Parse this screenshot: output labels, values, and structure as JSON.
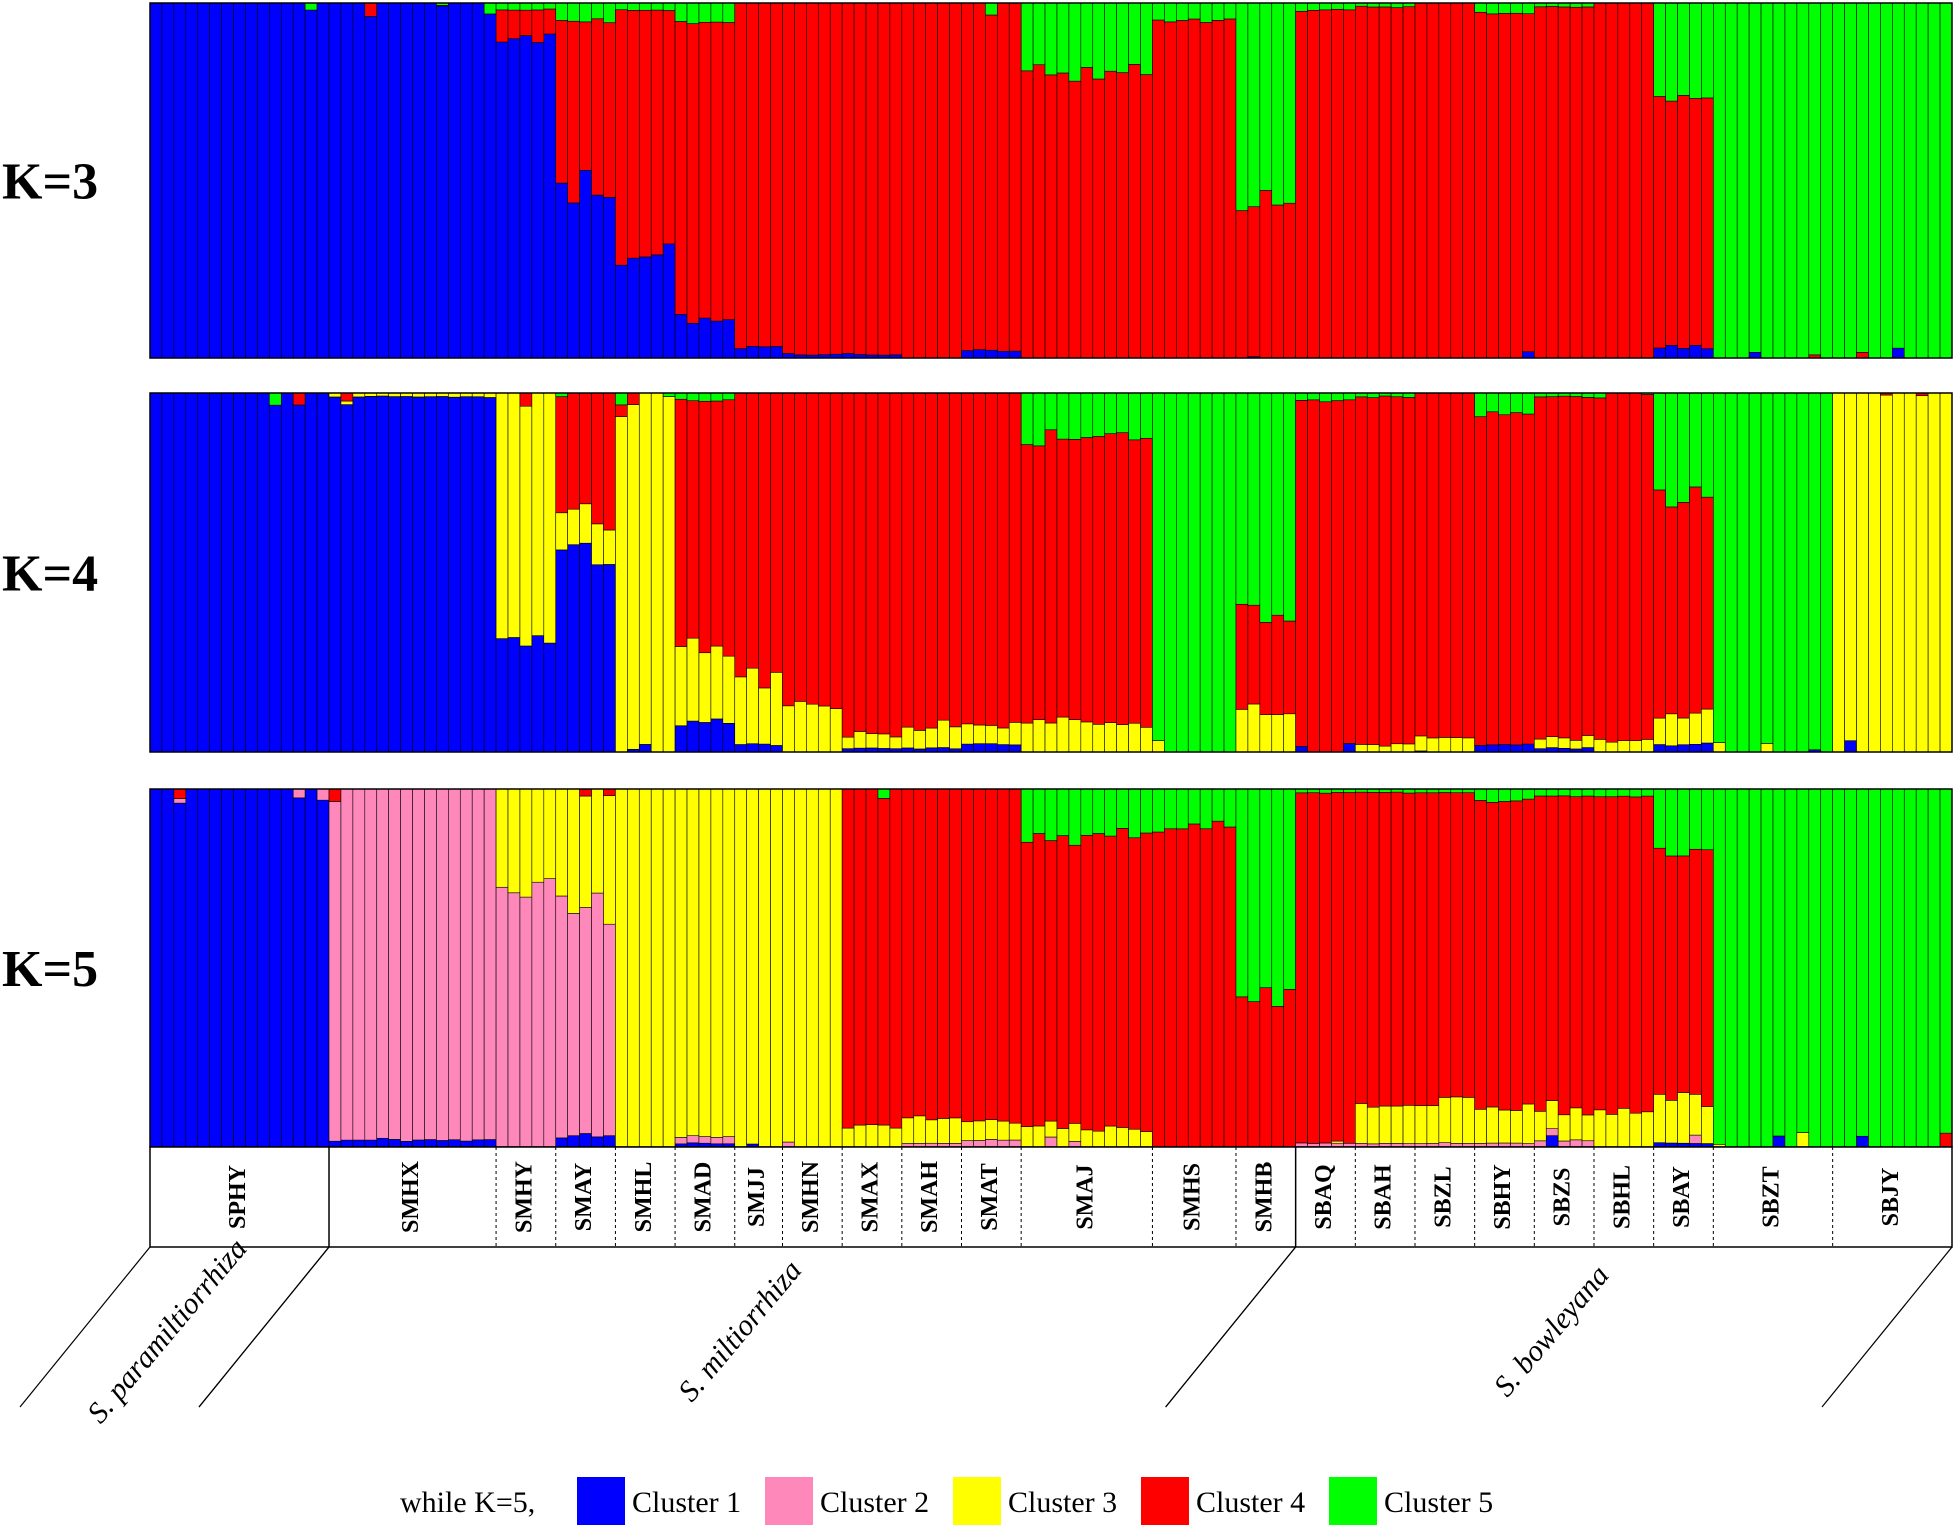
{
  "chart_data": {
    "type": "bar",
    "layout": "stacked-100%",
    "panels": [
      {
        "label": "K=3",
        "colors": [
          "#0000ff",
          "#ff0000",
          "#00ff00"
        ]
      },
      {
        "label": "K=4",
        "colors": [
          "#0000ff",
          "#ffff00",
          "#ff0000",
          "#00ff00"
        ]
      },
      {
        "label": "K=5",
        "colors": [
          "#0000ff",
          "#ff88bb",
          "#ffff00",
          "#ff0000",
          "#00ff00"
        ]
      }
    ],
    "populations": [
      {
        "name": "SPHY",
        "species": 0,
        "n": 15,
        "k3": [
          1.0,
          0.0,
          0.0
        ],
        "k4": [
          1.0,
          0.0,
          0.0,
          0.0
        ],
        "k5": [
          1.0,
          0.0,
          0.0,
          0.0,
          0.0
        ]
      },
      {
        "name": "SMHX",
        "species": 1,
        "n": 14,
        "k3": [
          1.0,
          0.0,
          0.0
        ],
        "k4": [
          0.99,
          0.01,
          0.0,
          0.0
        ],
        "k5": [
          0.02,
          0.98,
          0.0,
          0.0,
          0.0
        ]
      },
      {
        "name": "SMHY",
        "species": 1,
        "n": 5,
        "k3": [
          0.9,
          0.08,
          0.02
        ],
        "k4": [
          0.28,
          0.72,
          0.0,
          0.0
        ],
        "k5": [
          0.0,
          0.72,
          0.28,
          0.0,
          0.0
        ]
      },
      {
        "name": "SMAY",
        "species": 1,
        "n": 5,
        "k3": [
          0.48,
          0.47,
          0.05
        ],
        "k4": [
          0.55,
          0.1,
          0.35,
          0.0
        ],
        "k5": [
          0.03,
          0.65,
          0.32,
          0.0,
          0.0
        ]
      },
      {
        "name": "SMHL",
        "species": 1,
        "n": 5,
        "k3": [
          0.28,
          0.7,
          0.02
        ],
        "k4": [
          0.0,
          1.0,
          0.0,
          0.0
        ],
        "k5": [
          0.0,
          0.0,
          1.0,
          0.0,
          0.0
        ]
      },
      {
        "name": "SMAD",
        "species": 1,
        "n": 5,
        "k3": [
          0.12,
          0.82,
          0.06
        ],
        "k4": [
          0.08,
          0.2,
          0.7,
          0.02
        ],
        "k5": [
          0.01,
          0.02,
          0.97,
          0.0,
          0.0
        ]
      },
      {
        "name": "SMJJ",
        "species": 1,
        "n": 4,
        "k3": [
          0.03,
          0.97,
          0.0
        ],
        "k4": [
          0.02,
          0.18,
          0.8,
          0.0
        ],
        "k5": [
          0.0,
          0.0,
          1.0,
          0.0,
          0.0
        ]
      },
      {
        "name": "SMHN",
        "species": 1,
        "n": 5,
        "k3": [
          0.01,
          0.99,
          0.0
        ],
        "k4": [
          0.0,
          0.14,
          0.86,
          0.0
        ],
        "k5": [
          0.0,
          0.0,
          1.0,
          0.0,
          0.0
        ]
      },
      {
        "name": "SMAX",
        "species": 1,
        "n": 5,
        "k3": [
          0.01,
          0.99,
          0.0
        ],
        "k4": [
          0.01,
          0.04,
          0.95,
          0.0
        ],
        "k5": [
          0.0,
          0.0,
          0.06,
          0.94,
          0.0
        ]
      },
      {
        "name": "SMAH",
        "species": 1,
        "n": 5,
        "k3": [
          0.0,
          1.0,
          0.0
        ],
        "k4": [
          0.01,
          0.06,
          0.93,
          0.0
        ],
        "k5": [
          0.0,
          0.01,
          0.07,
          0.92,
          0.0
        ]
      },
      {
        "name": "SMAT",
        "species": 1,
        "n": 5,
        "k3": [
          0.02,
          0.98,
          0.0
        ],
        "k4": [
          0.02,
          0.05,
          0.93,
          0.0
        ],
        "k5": [
          0.0,
          0.02,
          0.05,
          0.93,
          0.0
        ]
      },
      {
        "name": "SMAJ",
        "species": 1,
        "n": 11,
        "k3": [
          0.0,
          0.8,
          0.2
        ],
        "k4": [
          0.0,
          0.08,
          0.8,
          0.12
        ],
        "k5": [
          0.0,
          0.0,
          0.05,
          0.82,
          0.13
        ]
      },
      {
        "name": "SMHS",
        "species": 1,
        "n": 7,
        "k3": [
          0.0,
          0.95,
          0.05
        ],
        "k4": [
          0.0,
          0.0,
          0.0,
          1.0
        ],
        "k5": [
          0.0,
          0.0,
          0.0,
          0.9,
          0.1
        ]
      },
      {
        "name": "SMHB",
        "species": 1,
        "n": 5,
        "k3": [
          0.0,
          0.45,
          0.55
        ],
        "k4": [
          0.0,
          0.12,
          0.28,
          0.6
        ],
        "k5": [
          0.0,
          0.0,
          0.0,
          0.4,
          0.6
        ]
      },
      {
        "name": "SBAQ",
        "species": 2,
        "n": 5,
        "k3": [
          0.0,
          0.98,
          0.02
        ],
        "k4": [
          0.0,
          0.0,
          0.98,
          0.02
        ],
        "k5": [
          0.0,
          0.01,
          0.0,
          0.98,
          0.01
        ]
      },
      {
        "name": "SBAH",
        "species": 2,
        "n": 5,
        "k3": [
          0.0,
          0.99,
          0.01
        ],
        "k4": [
          0.0,
          0.02,
          0.97,
          0.01
        ],
        "k5": [
          0.0,
          0.01,
          0.1,
          0.88,
          0.01
        ]
      },
      {
        "name": "SBZL",
        "species": 2,
        "n": 5,
        "k3": [
          0.0,
          1.0,
          0.0
        ],
        "k4": [
          0.0,
          0.04,
          0.96,
          0.0
        ],
        "k5": [
          0.0,
          0.01,
          0.12,
          0.86,
          0.01
        ]
      },
      {
        "name": "SBHY",
        "species": 2,
        "n": 5,
        "k3": [
          0.0,
          0.97,
          0.03
        ],
        "k4": [
          0.02,
          0.0,
          0.92,
          0.06
        ],
        "k5": [
          0.0,
          0.01,
          0.1,
          0.86,
          0.03
        ]
      },
      {
        "name": "SBZS",
        "species": 2,
        "n": 5,
        "k3": [
          0.0,
          0.99,
          0.01
        ],
        "k4": [
          0.01,
          0.03,
          0.95,
          0.01
        ],
        "k5": [
          0.0,
          0.02,
          0.08,
          0.88,
          0.02
        ]
      },
      {
        "name": "SBHL",
        "species": 2,
        "n": 5,
        "k3": [
          0.0,
          1.0,
          0.0
        ],
        "k4": [
          0.0,
          0.03,
          0.97,
          0.0
        ],
        "k5": [
          0.0,
          0.0,
          0.1,
          0.88,
          0.02
        ]
      },
      {
        "name": "SBAY",
        "species": 2,
        "n": 5,
        "k3": [
          0.03,
          0.72,
          0.25
        ],
        "k4": [
          0.02,
          0.08,
          0.6,
          0.3
        ],
        "k5": [
          0.01,
          0.0,
          0.12,
          0.7,
          0.17
        ]
      },
      {
        "name": "SBZT",
        "species": 2,
        "n": 10,
        "k3": [
          0.0,
          0.0,
          1.0
        ],
        "k4": [
          0.0,
          0.0,
          0.0,
          1.0
        ],
        "k5": [
          0.0,
          0.0,
          0.0,
          0.0,
          1.0
        ]
      },
      {
        "name": "SBJY",
        "species": 2,
        "n": 10,
        "k3": [
          0.0,
          0.0,
          1.0
        ],
        "k4": [
          0.0,
          1.0,
          0.0,
          0.0
        ],
        "k5": [
          0.0,
          0.0,
          0.0,
          0.0,
          1.0
        ]
      }
    ],
    "species": [
      "S. paramiltiorrhiza",
      "S. miltiorrhiza",
      "S. bowleyana"
    ],
    "legend": {
      "prefix": "while K=5,",
      "items": [
        {
          "label": "Cluster 1",
          "color": "#0000ff"
        },
        {
          "label": "Cluster 2",
          "color": "#ff88bb"
        },
        {
          "label": "Cluster 3",
          "color": "#ffff00"
        },
        {
          "label": "Cluster 4",
          "color": "#ff0000"
        },
        {
          "label": "Cluster 5",
          "color": "#00ff00"
        }
      ]
    }
  }
}
